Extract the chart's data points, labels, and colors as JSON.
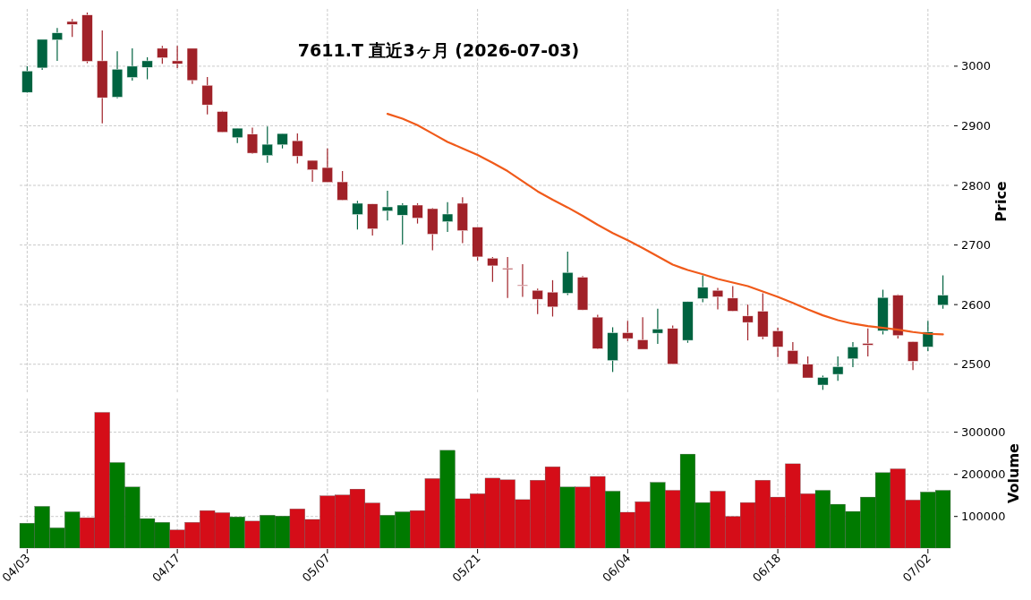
{
  "chart_data": [
    {
      "type": "candlestick",
      "title": "7611.T 直近3ヶ月 (2026-07-03)",
      "ylabel": "Price",
      "tick_labels": "y",
      "grid": true,
      "categories": [
        null,
        null,
        null,
        null,
        null,
        null,
        null,
        null,
        null,
        null,
        null,
        null,
        null,
        null,
        null,
        null,
        null,
        null,
        null,
        null,
        null,
        null,
        null,
        null,
        null,
        null,
        null,
        null,
        null,
        null,
        null,
        null,
        null,
        null,
        null,
        null,
        null,
        null,
        null,
        null,
        null,
        null,
        null,
        null,
        null,
        null,
        null,
        null,
        null,
        null,
        null,
        null,
        null,
        null,
        null,
        null,
        null,
        null,
        null,
        null,
        null,
        null
      ],
      "ohlc": [
        [
          2956,
          3000,
          2955,
          2992
        ],
        [
          2997,
          3045,
          2994,
          3045
        ],
        [
          3044,
          3064,
          3009,
          3056
        ],
        [
          3075,
          3079,
          3049,
          3070
        ],
        [
          3086,
          3090,
          3005,
          3008
        ],
        [
          3009,
          3060,
          2904,
          2947
        ],
        [
          2948,
          3025,
          2946,
          2995
        ],
        [
          2981,
          3030,
          2976,
          3000
        ],
        [
          2998,
          3015,
          2978,
          3009
        ],
        [
          3030,
          3034,
          3004,
          3014
        ],
        [
          3009,
          3034,
          2997,
          3004
        ],
        [
          3030,
          3030,
          2970,
          2976
        ],
        [
          2968,
          2982,
          2919,
          2935
        ],
        [
          2924,
          2925,
          2889,
          2889
        ],
        [
          2880,
          2896,
          2871,
          2896
        ],
        [
          2886,
          2897,
          2853,
          2854
        ],
        [
          2850,
          2899,
          2838,
          2869
        ],
        [
          2868,
          2887,
          2862,
          2887
        ],
        [
          2875,
          2887,
          2837,
          2849
        ],
        [
          2842,
          2842,
          2806,
          2826
        ],
        [
          2830,
          2862,
          2805,
          2805
        ],
        [
          2806,
          2824,
          2775,
          2775
        ],
        [
          2751,
          2774,
          2726,
          2770
        ],
        [
          2769,
          2769,
          2716,
          2727
        ],
        [
          2757,
          2791,
          2741,
          2764
        ],
        [
          2750,
          2770,
          2701,
          2767
        ],
        [
          2767,
          2770,
          2736,
          2745
        ],
        [
          2761,
          2762,
          2691,
          2718
        ],
        [
          2739,
          2772,
          2722,
          2752
        ],
        [
          2770,
          2780,
          2703,
          2724
        ],
        [
          2730,
          2730,
          2674,
          2680
        ],
        [
          2678,
          2680,
          2638,
          2665
        ],
        [
          2661,
          2680,
          2611,
          2659
        ],
        [
          2633,
          2668,
          2613,
          2632
        ],
        [
          2624,
          2627,
          2584,
          2609
        ],
        [
          2621,
          2641,
          2580,
          2596
        ],
        [
          2619,
          2689,
          2616,
          2654
        ],
        [
          2646,
          2648,
          2591,
          2591
        ],
        [
          2579,
          2583,
          2525,
          2526
        ],
        [
          2506,
          2562,
          2487,
          2553
        ],
        [
          2553,
          2573,
          2539,
          2543
        ],
        [
          2541,
          2579,
          2525,
          2525
        ],
        [
          2552,
          2593,
          2534,
          2559
        ],
        [
          2560,
          2565,
          2500,
          2500
        ],
        [
          2540,
          2605,
          2536,
          2605
        ],
        [
          2610,
          2649,
          2604,
          2629
        ],
        [
          2624,
          2628,
          2592,
          2613
        ],
        [
          2611,
          2631,
          2589,
          2589
        ],
        [
          2581,
          2600,
          2540,
          2570
        ],
        [
          2589,
          2619,
          2542,
          2546
        ],
        [
          2556,
          2561,
          2512,
          2529
        ],
        [
          2523,
          2537,
          2500,
          2500
        ],
        [
          2500,
          2513,
          2477,
          2477
        ],
        [
          2465,
          2481,
          2457,
          2478
        ],
        [
          2483,
          2513,
          2472,
          2496
        ],
        [
          2509,
          2537,
          2495,
          2529
        ],
        [
          2535,
          2560,
          2513,
          2532
        ],
        [
          2556,
          2625,
          2550,
          2612
        ],
        [
          2616,
          2617,
          2543,
          2548
        ],
        [
          2538,
          2538,
          2490,
          2505
        ],
        [
          2529,
          2573,
          2522,
          2554
        ],
        [
          2599,
          2649,
          2593,
          2616
        ]
      ],
      "colors": [
        "#006340",
        "#006340",
        "#006340",
        "#a02128",
        "#a02128",
        "#a02128",
        "#006340",
        "#006340",
        "#006340",
        "#a02128",
        "#a02128",
        "#a02128",
        "#a02128",
        "#a02128",
        "#006340",
        "#a02128",
        "#006340",
        "#006340",
        "#a02128",
        "#a02128",
        "#a02128",
        "#a02128",
        "#006340",
        "#a02128",
        "#006340",
        "#006340",
        "#a02128",
        "#a02128",
        "#006340",
        "#a02128",
        "#a02128",
        "#a02128",
        "#a02128",
        "#a02128",
        "#a02128",
        "#a02128",
        "#006340",
        "#a02128",
        "#a02128",
        "#006340",
        "#a02128",
        "#a02128",
        "#006340",
        "#a02128",
        "#006340",
        "#006340",
        "#a02128",
        "#a02128",
        "#a02128",
        "#a02128",
        "#a02128",
        "#a02128",
        "#a02128",
        "#006340",
        "#006340",
        "#006340",
        "#a02128",
        "#006340",
        "#a02128",
        "#a02128",
        "#006340",
        "#006340"
      ],
      "series": [
        {
          "type": "line",
          "color": "#f05a1a",
          "values": [
            null,
            null,
            null,
            null,
            null,
            null,
            null,
            null,
            null,
            null,
            null,
            null,
            null,
            null,
            null,
            null,
            null,
            null,
            null,
            null,
            null,
            null,
            null,
            null,
            2920,
            2912,
            2901,
            2887,
            2873,
            2862,
            2851,
            2838,
            2824,
            2807,
            2790,
            2776,
            2763,
            2749,
            2734,
            2720,
            2708,
            2695,
            2681,
            2667,
            2658,
            2651,
            2643,
            2637,
            2631,
            2622,
            2613,
            2603,
            2592,
            2582,
            2574,
            2568,
            2564,
            2561,
            2558,
            2554,
            2551,
            2550
          ]
        }
      ],
      "ylim": [
        2450,
        3096
      ],
      "yticks": [
        2500,
        2600,
        2700,
        2800,
        2900,
        3000
      ]
    },
    {
      "type": "bar",
      "ylabel": "Volume",
      "grid": true,
      "categories": [
        "04/03",
        null,
        null,
        null,
        null,
        null,
        null,
        null,
        null,
        null,
        "04/17",
        null,
        null,
        null,
        null,
        null,
        null,
        null,
        null,
        null,
        "05/07",
        null,
        null,
        null,
        null,
        null,
        null,
        null,
        null,
        null,
        "05/21",
        null,
        null,
        null,
        null,
        null,
        null,
        null,
        null,
        null,
        "06/04",
        null,
        null,
        null,
        null,
        null,
        null,
        null,
        null,
        null,
        "06/18",
        null,
        null,
        null,
        null,
        null,
        null,
        null,
        null,
        null,
        "07/02",
        null
      ],
      "values": [
        84000,
        124000,
        73000,
        111000,
        97000,
        347000,
        228000,
        170000,
        95000,
        86000,
        68000,
        86000,
        114000,
        109000,
        99000,
        89000,
        103000,
        101000,
        118000,
        93000,
        149000,
        151000,
        165000,
        132000,
        103000,
        111000,
        114000,
        190000,
        257000,
        142000,
        154000,
        191000,
        187000,
        140000,
        186000,
        218000,
        170000,
        170000,
        195000,
        160000,
        110000,
        135000,
        181000,
        162000,
        248000,
        133000,
        160000,
        100000,
        133000,
        186000,
        146000,
        225000,
        154000,
        162000,
        129000,
        112000,
        146000,
        204000,
        213000,
        139000,
        158000,
        162000
      ],
      "colors": [
        "#007a00",
        "#007a00",
        "#007a00",
        "#007a00",
        "#d50d18",
        "#d50d18",
        "#007a00",
        "#007a00",
        "#007a00",
        "#007a00",
        "#d50d18",
        "#d50d18",
        "#d50d18",
        "#d50d18",
        "#007a00",
        "#d50d18",
        "#007a00",
        "#007a00",
        "#d50d18",
        "#d50d18",
        "#d50d18",
        "#d50d18",
        "#d50d18",
        "#d50d18",
        "#007a00",
        "#007a00",
        "#d50d18",
        "#d50d18",
        "#007a00",
        "#d50d18",
        "#d50d18",
        "#d50d18",
        "#d50d18",
        "#d50d18",
        "#d50d18",
        "#d50d18",
        "#007a00",
        "#d50d18",
        "#d50d18",
        "#007a00",
        "#d50d18",
        "#d50d18",
        "#007a00",
        "#d50d18",
        "#007a00",
        "#007a00",
        "#d50d18",
        "#d50d18",
        "#d50d18",
        "#d50d18",
        "#d50d18",
        "#d50d18",
        "#d50d18",
        "#007a00",
        "#007a00",
        "#007a00",
        "#007a00",
        "#007a00",
        "#d50d18",
        "#d50d18",
        "#007a00",
        "#007a00"
      ],
      "ylim": [
        25000,
        380000
      ],
      "yticks": [
        100000,
        200000,
        300000
      ]
    }
  ]
}
